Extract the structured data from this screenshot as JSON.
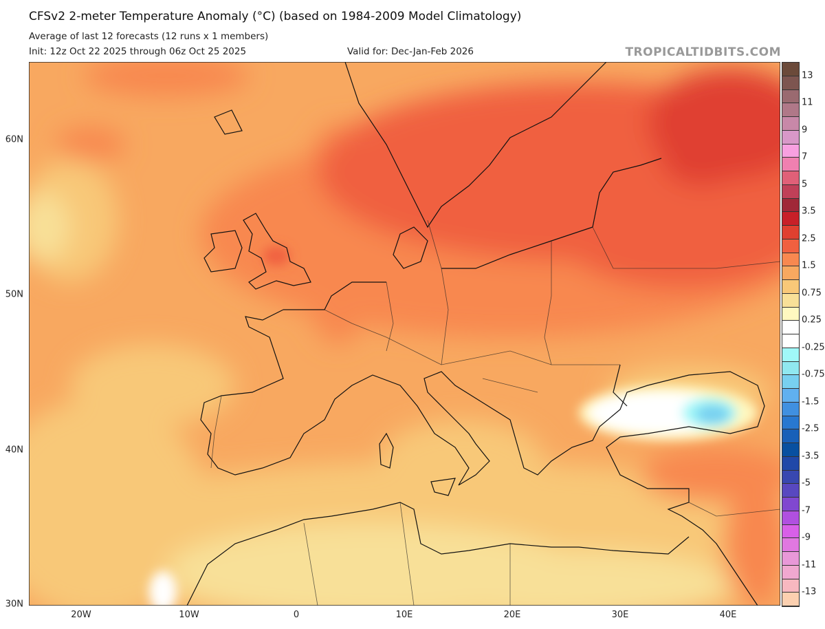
{
  "header": {
    "title": "CFSv2 2-meter Temperature Anomaly (°C) (based on 1984-2009 Model Climatology)",
    "subtitle": "Average of last 12 forecasts (12 runs x 1 members)",
    "init": "Init: 12z Oct 22 2025 through 06z Oct 25 2025",
    "valid": "Valid for: Dec-Jan-Feb 2026",
    "brand": "TROPICALTIDBITS.COM"
  },
  "axes": {
    "lat_labels": [
      "60N",
      "50N",
      "40N",
      "30N"
    ],
    "lon_labels": [
      "20W",
      "10W",
      "0",
      "10E",
      "20E",
      "30E",
      "40E"
    ]
  },
  "colorbar": {
    "labels": [
      "13",
      "11",
      "9",
      "7",
      "5",
      "3.5",
      "2.5",
      "1.5",
      "0.75",
      "0.25",
      "-0.25",
      "-0.75",
      "-1.5",
      "-2.5",
      "-3.5",
      "-5",
      "-7",
      "-9",
      "-11",
      "-13"
    ],
    "colors": [
      "#6b4a3a",
      "#7d5550",
      "#9a6a70",
      "#b07888",
      "#c888a8",
      "#d898c8",
      "#f8a0e0",
      "#f080b0",
      "#e06078",
      "#c04058",
      "#a02838",
      "#c82028",
      "#e04030",
      "#f06040",
      "#f88850",
      "#f8a860",
      "#f8c878",
      "#f8e098",
      "#fff8c0",
      "#ffffff",
      "#ffffff",
      "#a0f8f8",
      "#90e8f0",
      "#78d0f0",
      "#60b0f0",
      "#4090e0",
      "#2878d0",
      "#1860b8",
      "#0850a0",
      "#2048a8",
      "#3848b0",
      "#5848c0",
      "#8048d0",
      "#b050e0",
      "#d860e8",
      "#e078e0",
      "#e898d8",
      "#f0a8d0",
      "#f8b8c0",
      "#fcd0b0"
    ]
  }
}
